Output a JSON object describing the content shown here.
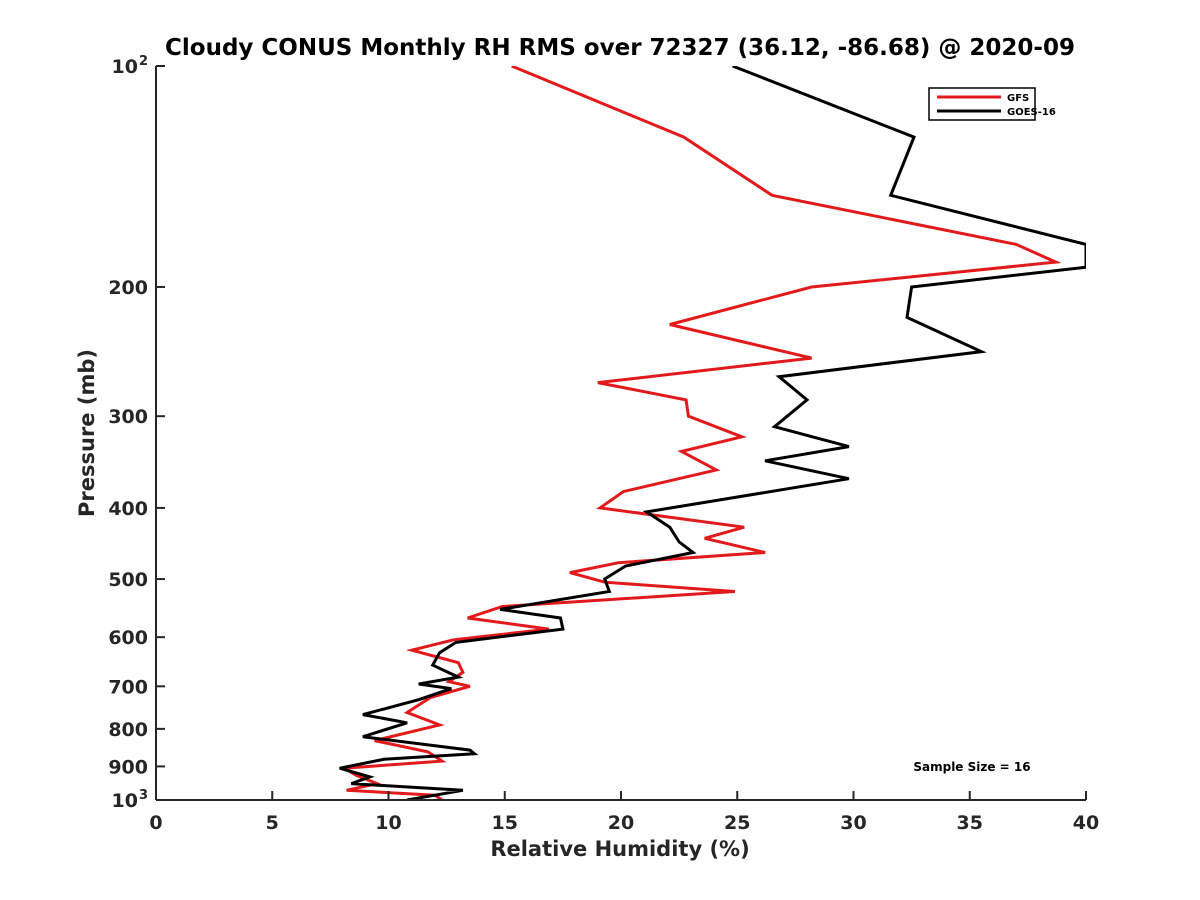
{
  "chart_data": {
    "type": "line",
    "title": "Cloudy CONUS Monthly RH RMS over 72327 (36.12, -86.68) @ 2020-09",
    "xlabel": "Relative Humidity (%)",
    "ylabel": "Pressure (mb)",
    "xlim": [
      0,
      40
    ],
    "ylim": [
      100,
      1000
    ],
    "yscale": "log",
    "y_reversed": true,
    "grid": false,
    "legend_position": "top-right",
    "xticks": [
      0,
      5,
      10,
      15,
      20,
      25,
      30,
      35,
      40
    ],
    "xtick_labels": [
      "0",
      "5",
      "10",
      "15",
      "20",
      "25",
      "30",
      "35",
      "40"
    ],
    "yticks": [
      100,
      200,
      300,
      400,
      500,
      600,
      700,
      800,
      900,
      1000
    ],
    "ytick_labels": [
      {
        "base": "10",
        "exp": "2"
      },
      {
        "base": "200",
        "exp": ""
      },
      {
        "base": "300",
        "exp": ""
      },
      {
        "base": "400",
        "exp": ""
      },
      {
        "base": "500",
        "exp": ""
      },
      {
        "base": "600",
        "exp": ""
      },
      {
        "base": "700",
        "exp": ""
      },
      {
        "base": "800",
        "exp": ""
      },
      {
        "base": "900",
        "exp": ""
      },
      {
        "base": "10",
        "exp": "3"
      }
    ],
    "annotation": "Sample Size = 16",
    "series": [
      {
        "name": "GFS",
        "color": "#e31a1c",
        "points": [
          [
            15.3,
            100
          ],
          [
            22.7,
            125
          ],
          [
            26.5,
            150
          ],
          [
            37.0,
            175
          ],
          [
            38.7,
            185
          ],
          [
            28.2,
            200
          ],
          [
            22.1,
            225
          ],
          [
            28.2,
            250
          ],
          [
            19.0,
            270
          ],
          [
            22.8,
            285
          ],
          [
            22.9,
            300
          ],
          [
            25.2,
            320
          ],
          [
            22.6,
            335
          ],
          [
            24.1,
            355
          ],
          [
            20.1,
            380
          ],
          [
            19.1,
            400
          ],
          [
            25.3,
            425
          ],
          [
            23.6,
            440
          ],
          [
            26.2,
            460
          ],
          [
            19.9,
            475
          ],
          [
            17.8,
            490
          ],
          [
            19.3,
            505
          ],
          [
            24.9,
            520
          ],
          [
            14.9,
            545
          ],
          [
            13.4,
            565
          ],
          [
            16.9,
            585
          ],
          [
            12.8,
            605
          ],
          [
            11.0,
            625
          ],
          [
            13.0,
            650
          ],
          [
            13.2,
            670
          ],
          [
            12.6,
            690
          ],
          [
            13.5,
            700
          ],
          [
            11.8,
            725
          ],
          [
            10.8,
            760
          ],
          [
            12.2,
            790
          ],
          [
            9.4,
            830
          ],
          [
            11.7,
            860
          ],
          [
            12.3,
            885
          ],
          [
            8.1,
            905
          ],
          [
            8.6,
            925
          ],
          [
            9.5,
            950
          ],
          [
            8.2,
            970
          ],
          [
            12.0,
            985
          ],
          [
            12.3,
            1000
          ]
        ]
      },
      {
        "name": "GOES-16",
        "color": "#000000",
        "points": [
          [
            24.8,
            100
          ],
          [
            32.6,
            125
          ],
          [
            31.6,
            150
          ],
          [
            40.0,
            175
          ],
          [
            40.0,
            188
          ],
          [
            32.5,
            200
          ],
          [
            32.3,
            220
          ],
          [
            35.5,
            245
          ],
          [
            26.8,
            265
          ],
          [
            28.0,
            285
          ],
          [
            26.6,
            310
          ],
          [
            29.8,
            330
          ],
          [
            26.2,
            345
          ],
          [
            29.8,
            365
          ],
          [
            21.1,
            405
          ],
          [
            22.1,
            425
          ],
          [
            22.5,
            445
          ],
          [
            23.1,
            460
          ],
          [
            20.2,
            480
          ],
          [
            19.3,
            500
          ],
          [
            19.5,
            520
          ],
          [
            14.8,
            550
          ],
          [
            17.4,
            565
          ],
          [
            17.5,
            585
          ],
          [
            12.9,
            610
          ],
          [
            12.2,
            630
          ],
          [
            11.9,
            655
          ],
          [
            13.0,
            680
          ],
          [
            11.3,
            695
          ],
          [
            12.7,
            705
          ],
          [
            11.3,
            730
          ],
          [
            8.9,
            765
          ],
          [
            10.8,
            785
          ],
          [
            8.9,
            820
          ],
          [
            13.5,
            855
          ],
          [
            13.7,
            865
          ],
          [
            9.8,
            880
          ],
          [
            7.9,
            905
          ],
          [
            9.2,
            930
          ],
          [
            8.4,
            950
          ],
          [
            13.2,
            970
          ],
          [
            10.8,
            1000
          ]
        ]
      }
    ]
  }
}
